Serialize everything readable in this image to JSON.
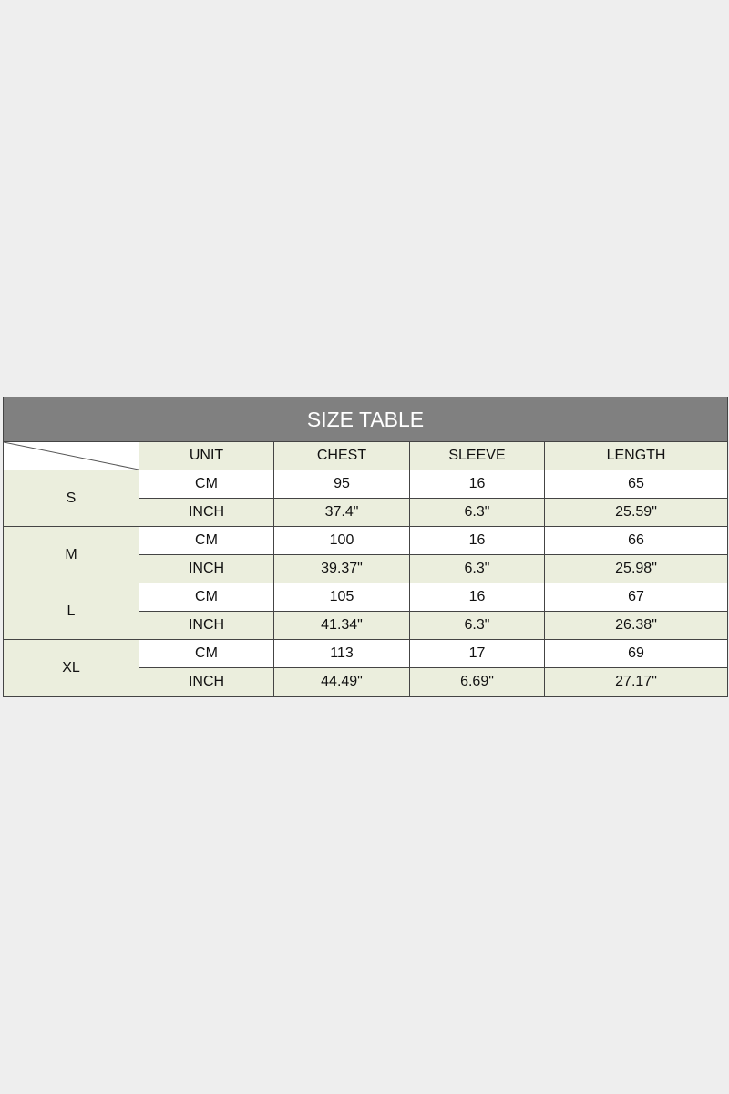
{
  "title": "SIZE TABLE",
  "headers": [
    "UNIT",
    "CHEST",
    "SLEEVE",
    "LENGTH"
  ],
  "sizes": [
    {
      "size": "S",
      "rows": [
        [
          "CM",
          "95",
          "16",
          "65"
        ],
        [
          "INCH",
          "37.4\"",
          "6.3\"",
          "25.59\""
        ]
      ]
    },
    {
      "size": "M",
      "rows": [
        [
          "CM",
          "100",
          "16",
          "66"
        ],
        [
          "INCH",
          "39.37\"",
          "6.3\"",
          "25.98\""
        ]
      ]
    },
    {
      "size": "L",
      "rows": [
        [
          "CM",
          "105",
          "16",
          "67"
        ],
        [
          "INCH",
          "41.34\"",
          "6.3\"",
          "26.38\""
        ]
      ]
    },
    {
      "size": "XL",
      "rows": [
        [
          "CM",
          "113",
          "17",
          "69"
        ],
        [
          "INCH",
          "44.49\"",
          "6.69\"",
          "27.17\""
        ]
      ]
    }
  ],
  "colors": {
    "title_bg": "#808080",
    "green": "#ebeedd",
    "background": "#eeeeee"
  }
}
